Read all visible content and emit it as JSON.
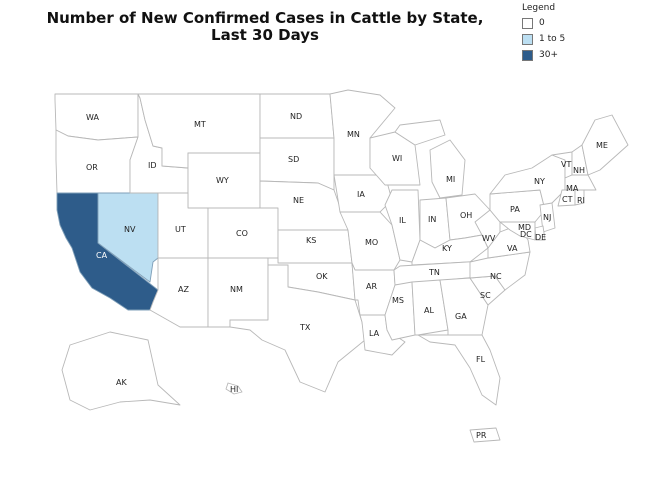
{
  "title": "Number of New Confirmed Cases in Cattle by State,\nLast 30 Days",
  "legend": {
    "title": "Legend",
    "items": [
      {
        "label": "0",
        "color": "#ffffff"
      },
      {
        "label": "1 to 5",
        "color": "#bcdff2"
      },
      {
        "label": "30+",
        "color": "#2e5c8a"
      }
    ]
  },
  "states": {
    "WA": "WA",
    "OR": "OR",
    "CA": "CA",
    "NV": "NV",
    "ID": "ID",
    "MT": "MT",
    "WY": "WY",
    "UT": "UT",
    "AZ": "AZ",
    "CO": "CO",
    "NM": "NM",
    "ND": "ND",
    "SD": "SD",
    "NE": "NE",
    "KS": "KS",
    "OK": "OK",
    "TX": "TX",
    "MN": "MN",
    "IA": "IA",
    "MO": "MO",
    "AR": "AR",
    "LA": "LA",
    "WI": "WI",
    "IL": "IL",
    "MS": "MS",
    "MI": "MI",
    "IN": "IN",
    "KY": "KY",
    "TN": "TN",
    "AL": "AL",
    "GA": "GA",
    "FL": "FL",
    "OH": "OH",
    "WV": "WV",
    "VA": "VA",
    "NC": "NC",
    "SC": "SC",
    "PA": "PA",
    "NY": "NY",
    "VT": "VT",
    "NH": "NH",
    "ME": "ME",
    "MA": "MA",
    "CT": "CT",
    "RI": "RI",
    "NJ": "NJ",
    "DE": "DE",
    "MD": "MD",
    "DC": "DC",
    "AK": "AK",
    "HI": "HI",
    "PR": "PR"
  },
  "category": {
    "CA": "30+",
    "NV": "1 to 5"
  }
}
